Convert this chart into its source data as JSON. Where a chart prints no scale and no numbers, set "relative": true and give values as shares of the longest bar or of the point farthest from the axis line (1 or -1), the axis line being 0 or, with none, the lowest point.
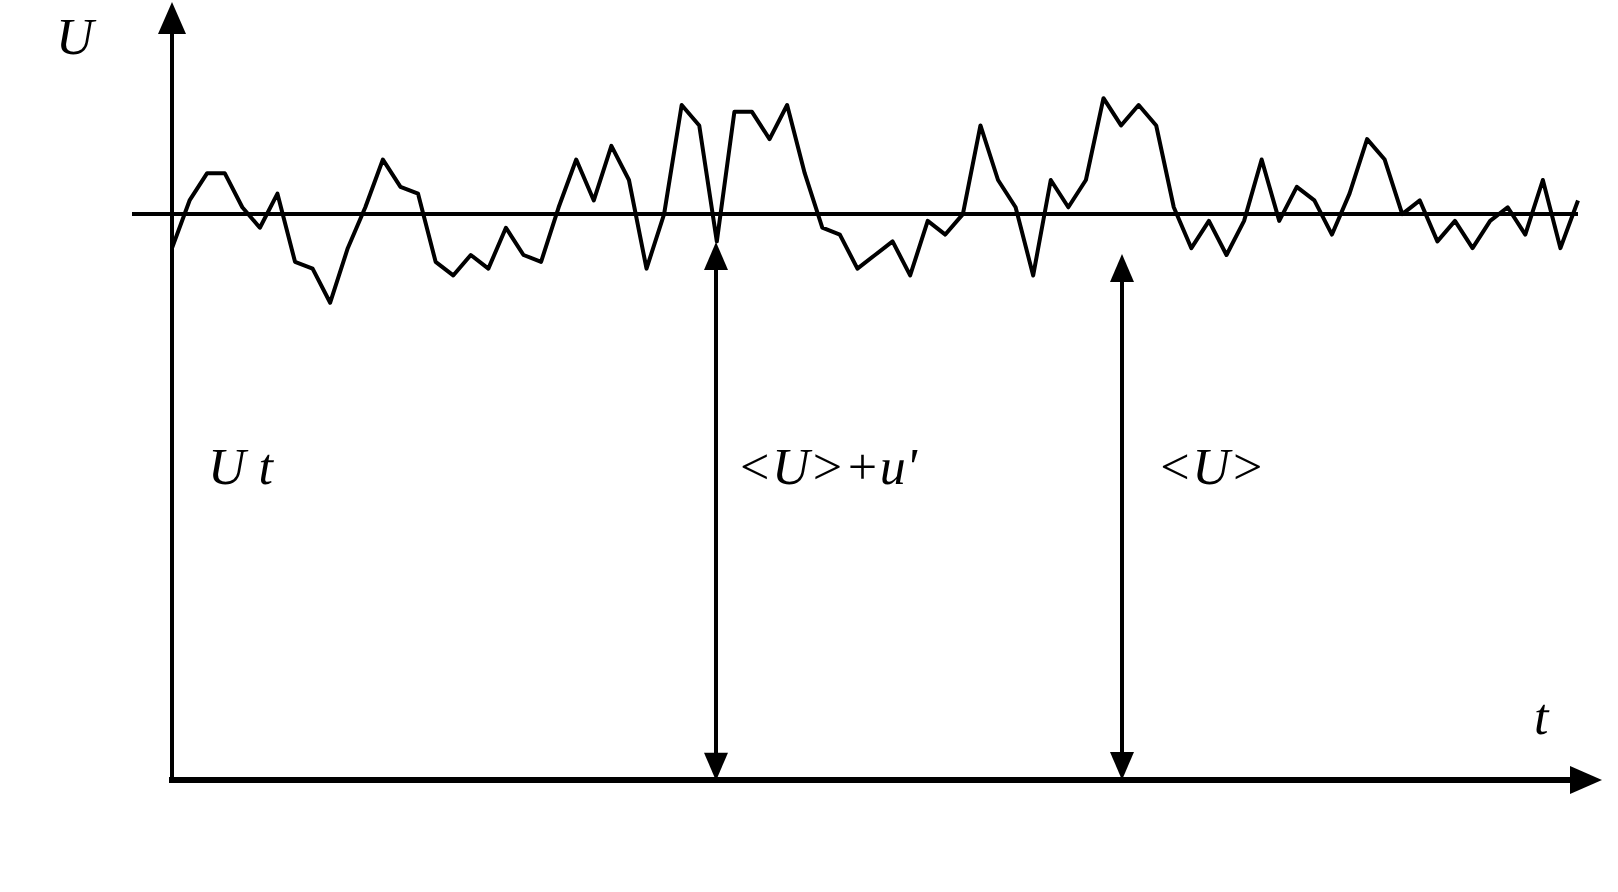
{
  "chart_data": {
    "type": "line",
    "relative": true,
    "xlabel": "t",
    "ylabel": "U",
    "color": "#000000",
    "marker": "none",
    "grid": false,
    "legend": false,
    "tick_labels": false,
    "annotations": [
      "U t",
      "<U>+u'",
      "<U>"
    ],
    "ref_lines": [
      {
        "axis": "y",
        "value": 0.83,
        "color": "#000000"
      }
    ],
    "categories": [
      null,
      null,
      null,
      null,
      null,
      null,
      null,
      null,
      null,
      null,
      null,
      null,
      null,
      null,
      null,
      null,
      null,
      null,
      null,
      null,
      null,
      null,
      null,
      null,
      null,
      null,
      null,
      null,
      null,
      null,
      null,
      null,
      null,
      null,
      null,
      null,
      null,
      null,
      null,
      null,
      null,
      null,
      null,
      null,
      null,
      null,
      null,
      null,
      null,
      null,
      null,
      null,
      null,
      null,
      null,
      null,
      null,
      null,
      null,
      null,
      null,
      null,
      null,
      null,
      null,
      null,
      null,
      null,
      null,
      null,
      null,
      null,
      null,
      null,
      null,
      null,
      null,
      null,
      null,
      null,
      null
    ],
    "values": [
      0.78,
      0.85,
      0.89,
      0.89,
      0.84,
      0.81,
      0.86,
      0.76,
      0.75,
      0.7,
      0.78,
      0.84,
      0.91,
      0.87,
      0.86,
      0.76,
      0.74,
      0.77,
      0.75,
      0.81,
      0.77,
      0.76,
      0.84,
      0.91,
      0.85,
      0.93,
      0.88,
      0.75,
      0.83,
      0.99,
      0.96,
      0.79,
      0.98,
      0.98,
      0.94,
      0.99,
      0.89,
      0.81,
      0.8,
      0.75,
      0.77,
      0.79,
      0.74,
      0.82,
      0.8,
      0.83,
      0.96,
      0.88,
      0.84,
      0.74,
      0.88,
      0.84,
      0.88,
      1,
      0.96,
      0.99,
      0.96,
      0.84,
      0.78,
      0.82,
      0.77,
      0.82,
      0.91,
      0.82,
      0.87,
      0.85,
      0.8,
      0.86,
      0.94,
      0.91,
      0.83,
      0.85,
      0.79,
      0.82,
      0.78,
      0.82,
      0.84,
      0.8,
      0.88,
      0.78,
      0.85
    ]
  }
}
